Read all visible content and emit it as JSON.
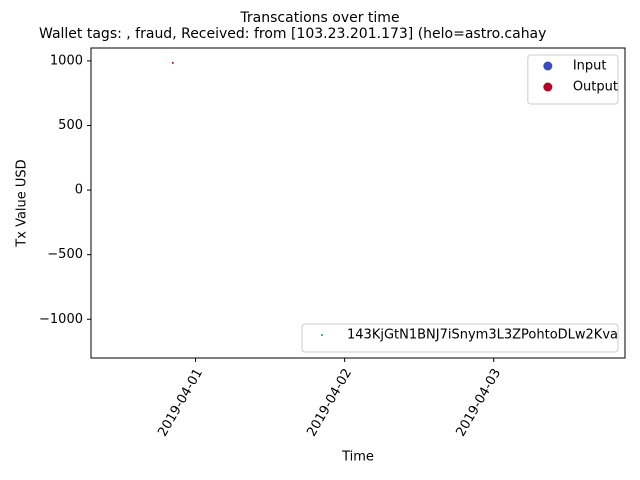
{
  "chart_data": {
    "type": "scatter",
    "suptitle": "Transcations over time",
    "title": "Wallet tags: , fraud, Received: from [103.23.201.173] (helo=astro.cahay",
    "xlabel": "Time",
    "ylabel": "Tx Value USD",
    "xlim": [
      "2019-03-31T07:10",
      "2019-04-03T21:08"
    ],
    "xticks": [
      "2019-04-01",
      "2019-04-02",
      "2019-04-03"
    ],
    "ylim": [
      -1300,
      1100
    ],
    "yticks": [
      {
        "value": -1000,
        "label": "−1000"
      },
      {
        "value": -500,
        "label": "−500"
      },
      0,
      500,
      1000
    ],
    "series": [
      {
        "name": "Input",
        "color": "#3b4cc0",
        "legend": "upper right",
        "x": [],
        "values": []
      },
      {
        "name": "Output",
        "color": "#b40426",
        "legend": "upper right",
        "x": [
          "2019-03-31T20:20"
        ],
        "values": [
          985
        ]
      },
      {
        "name": "143KjGtN1BNJ7iSnym3L3ZPohtoDLw2Kva",
        "color": "#1a9850",
        "legend": "lower right",
        "x": [],
        "values": []
      }
    ]
  }
}
